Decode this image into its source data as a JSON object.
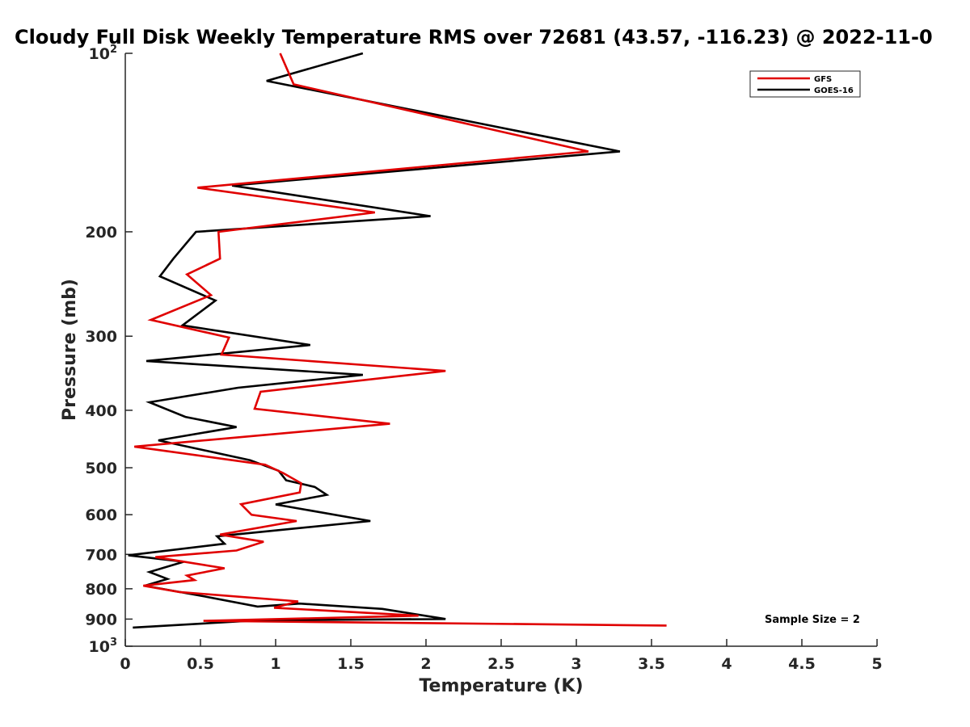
{
  "chart_data": {
    "type": "line",
    "title": "Cloudy Full Disk Weekly Temperature RMS over 72681 (43.57, -116.23) @ 2022-11-0",
    "xlabel": "Temperature (K)",
    "ylabel": "Pressure (mb)",
    "xlim": [
      0,
      5
    ],
    "ylim": [
      100,
      1000
    ],
    "y_scale": "log",
    "y_reversed": true,
    "x_ticks": [
      "0",
      "0.5",
      "1",
      "1.5",
      "2",
      "2.5",
      "3",
      "3.5",
      "4",
      "4.5",
      "5"
    ],
    "y_ticks": [
      {
        "value": 100,
        "label": "10",
        "sup": "2"
      },
      {
        "value": 200,
        "label": "200"
      },
      {
        "value": 300,
        "label": "300"
      },
      {
        "value": 400,
        "label": "400"
      },
      {
        "value": 500,
        "label": "500"
      },
      {
        "value": 600,
        "label": "600"
      },
      {
        "value": 700,
        "label": "700"
      },
      {
        "value": 800,
        "label": "800"
      },
      {
        "value": 900,
        "label": "900"
      },
      {
        "value": 1000,
        "label": "10",
        "sup": "3"
      }
    ],
    "grid": false,
    "legend_position": "top-right",
    "annotation": "Sample Size = 2",
    "series": [
      {
        "name": "GFS",
        "color": "#e00000",
        "points": [
          [
            1.03,
            100
          ],
          [
            1.12,
            112.8
          ],
          [
            3.08,
            146.4
          ],
          [
            0.48,
            168.5
          ],
          [
            1.66,
            185.5
          ],
          [
            0.62,
            200
          ],
          [
            0.63,
            222
          ],
          [
            0.41,
            236
          ],
          [
            0.57,
            255.8
          ],
          [
            0.17,
            281.6
          ],
          [
            0.69,
            301.6
          ],
          [
            0.64,
            322.2
          ],
          [
            2.13,
            343.3
          ],
          [
            0.9,
            372.2
          ],
          [
            0.86,
            397.6
          ],
          [
            1.76,
            421.5
          ],
          [
            0.06,
            460.6
          ],
          [
            0.93,
            494.2
          ],
          [
            1.05,
            510.4
          ],
          [
            1.17,
            531.1
          ],
          [
            1.16,
            550.5
          ],
          [
            0.77,
            576
          ],
          [
            0.84,
            600.2
          ],
          [
            1.14,
            614.9
          ],
          [
            0.63,
            648.2
          ],
          [
            0.92,
            666.5
          ],
          [
            0.74,
            689.6
          ],
          [
            0.2,
            707.6
          ],
          [
            0.66,
            738.7
          ],
          [
            0.41,
            760
          ],
          [
            0.46,
            773.4
          ],
          [
            0.12,
            790.5
          ],
          [
            0.36,
            810.2
          ],
          [
            1.15,
            840.3
          ],
          [
            0.99,
            861.4
          ],
          [
            1.95,
            888.1
          ],
          [
            0.52,
            906.1
          ],
          [
            3.6,
            922.9
          ]
        ]
      },
      {
        "name": "GOES-16",
        "color": "#000000",
        "points": [
          [
            1.58,
            100
          ],
          [
            0.94,
            111.3
          ],
          [
            3.29,
            146.4
          ],
          [
            0.71,
            167.1
          ],
          [
            2.03,
            188.2
          ],
          [
            0.47,
            200
          ],
          [
            0.32,
            222
          ],
          [
            0.23,
            237.8
          ],
          [
            0.6,
            261.2
          ],
          [
            0.38,
            287.6
          ],
          [
            1.23,
            310.4
          ],
          [
            0.14,
            330.3
          ],
          [
            1.58,
            348.6
          ],
          [
            0.75,
            366.5
          ],
          [
            0.16,
            387.8
          ],
          [
            0.4,
            410.4
          ],
          [
            0.74,
            426.9
          ],
          [
            0.22,
            449.5
          ],
          [
            0.83,
            485.6
          ],
          [
            1.02,
            506
          ],
          [
            1.07,
            525
          ],
          [
            1.26,
            538.7
          ],
          [
            1.34,
            555.5
          ],
          [
            1.0,
            576.6
          ],
          [
            1.63,
            615
          ],
          [
            0.61,
            652.4
          ],
          [
            0.66,
            671.5
          ],
          [
            0.02,
            702.4
          ],
          [
            0.39,
            720.2
          ],
          [
            0.16,
            749.6
          ],
          [
            0.28,
            770
          ],
          [
            0.13,
            790.5
          ],
          [
            0.52,
            823.6
          ],
          [
            0.88,
            857.2
          ],
          [
            1.16,
            847.4
          ],
          [
            1.71,
            865.1
          ],
          [
            2.13,
            899.7
          ],
          [
            0.88,
            904.6
          ],
          [
            0.05,
            930
          ]
        ]
      }
    ]
  }
}
